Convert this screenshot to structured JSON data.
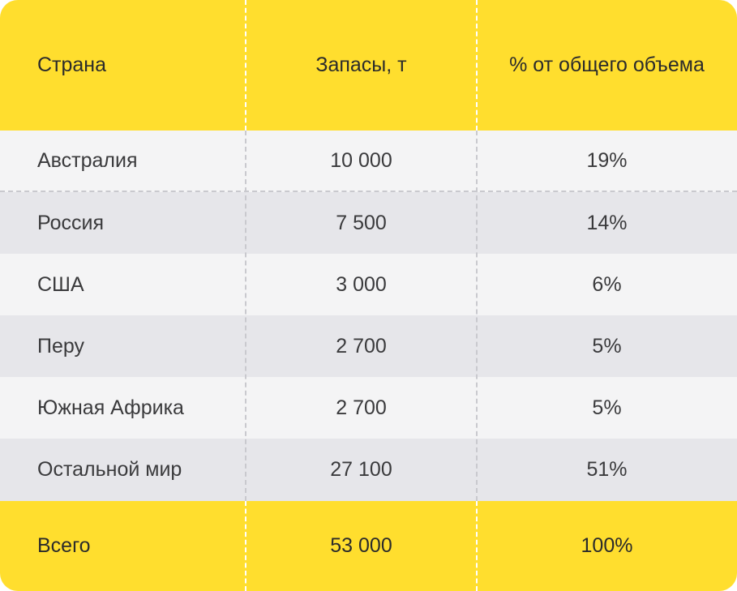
{
  "table": {
    "columns": [
      "Страна",
      "Запасы, т",
      "% от общего объема"
    ],
    "rows": [
      {
        "country": "Австралия",
        "reserves": "10 000",
        "share": "19%"
      },
      {
        "country": "Россия",
        "reserves": "7 500",
        "share": "14%"
      },
      {
        "country": "США",
        "reserves": "3 000",
        "share": "6%"
      },
      {
        "country": "Перу",
        "reserves": "2 700",
        "share": "5%"
      },
      {
        "country": "Южная Африка",
        "reserves": "2 700",
        "share": "5%"
      },
      {
        "country": "Остальной мир",
        "reserves": "27 100",
        "share": "51%"
      }
    ],
    "total": {
      "label": "Всего",
      "reserves": "53 000",
      "share": "100%"
    }
  },
  "colors": {
    "header_bg": "#ffde2e",
    "row_light": "#f4f4f5",
    "row_dark": "#e6e6ea",
    "text": "#3a3a3c"
  }
}
